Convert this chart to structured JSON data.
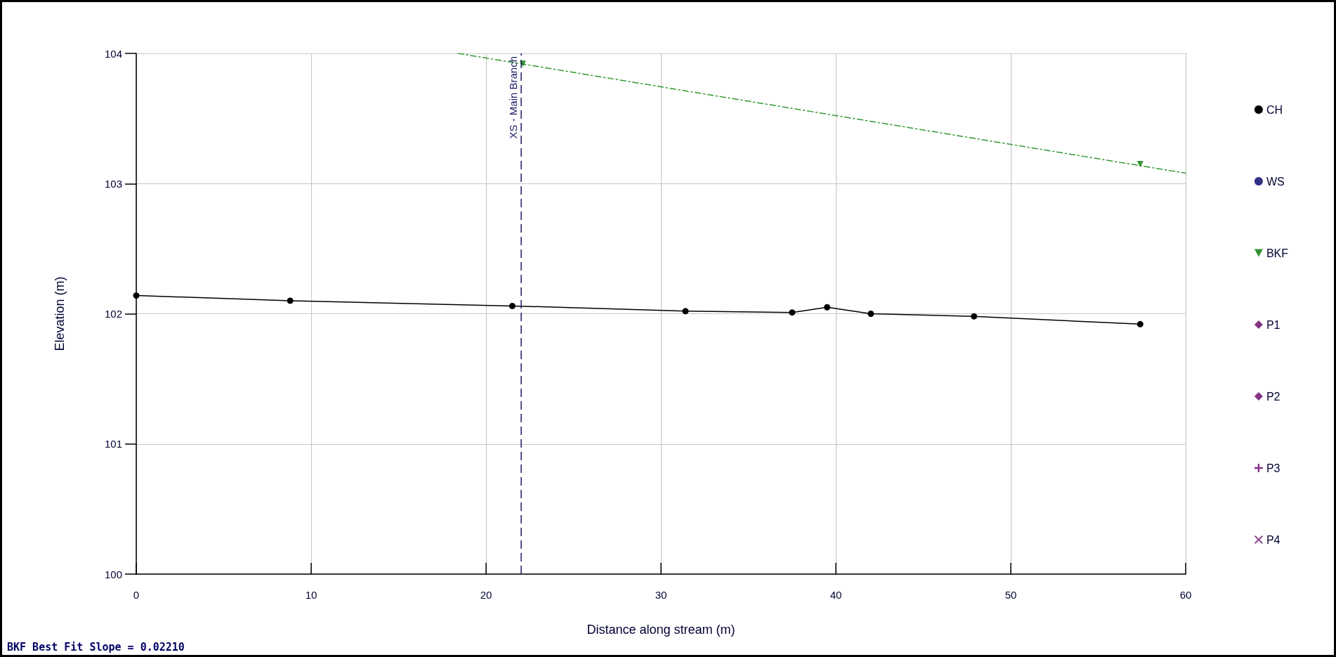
{
  "chart_data": {
    "type": "scatter",
    "xlabel": "Distance along stream (m)",
    "ylabel": "Elevation (m)",
    "xlim": [
      0,
      60
    ],
    "xticks": [
      0,
      10,
      20,
      30,
      40,
      50,
      60
    ],
    "ylim": [
      100,
      104
    ],
    "yticks": [
      100,
      101,
      102,
      103,
      104
    ],
    "grid": true,
    "legend": "right",
    "series": [
      {
        "name": "CH",
        "type": "line",
        "color": "#000000",
        "marker": "circle",
        "line_style": "solid",
        "x": [
          0,
          8.8,
          21.5,
          31.4,
          37.5,
          39.5,
          42.0,
          47.9,
          57.4
        ],
        "values": [
          102.14,
          102.1,
          102.06,
          102.02,
          102.01,
          102.05,
          102.0,
          101.98,
          101.92
        ]
      },
      {
        "name": "WS",
        "color": "#000066",
        "marker": "circle"
      },
      {
        "name": "BKF",
        "color": "#007700",
        "marker": "triangle",
        "x": [
          22.1,
          57.4
        ],
        "values": [
          103.92,
          103.15
        ]
      },
      {
        "name": "P1",
        "color": "#660066",
        "marker": "diamond"
      },
      {
        "name": "P2",
        "color": "#660066",
        "marker": "diamond"
      },
      {
        "name": "P3",
        "color": "#660066",
        "marker": "plus"
      },
      {
        "name": "P4",
        "color": "#660066",
        "marker": "cross"
      },
      {
        "type": "line",
        "color": "#339933",
        "marker": "none",
        "line_style": "dashed",
        "x": [
          18.4,
          60
        ],
        "values": [
          104.0,
          103.08
        ]
      }
    ],
    "ref_lines": [
      {
        "axis": "x",
        "value": 22,
        "label": "XS - Main Branch",
        "color": "#1a1a66",
        "line_style": "dashed"
      }
    ],
    "annotations": [
      "BKF Best Fit Slope = 0.02210"
    ]
  }
}
